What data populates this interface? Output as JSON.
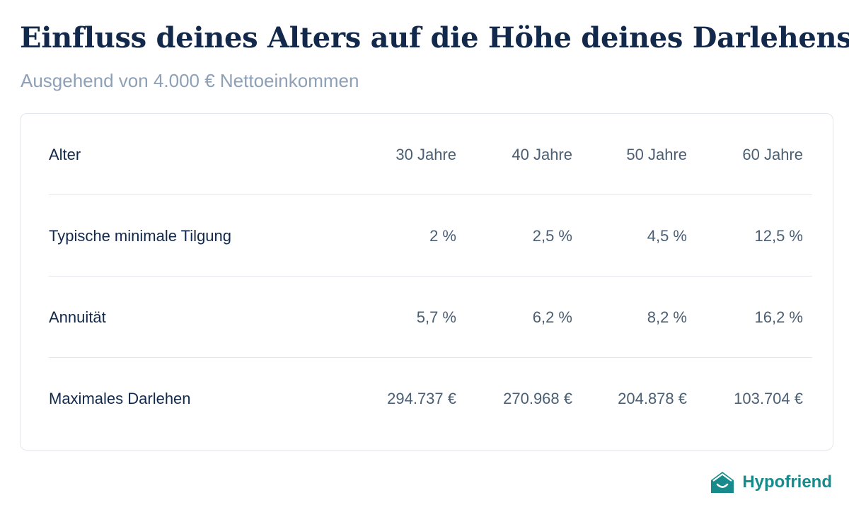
{
  "title": "Einfluss deines Alters auf die Höhe deines Darlehens",
  "subtitle": "Ausgehend von 4.000 € Nettoeinkommen",
  "table": {
    "header": {
      "label": "Alter",
      "values": [
        "30 Jahre",
        "40 Jahre",
        "50 Jahre",
        "60 Jahre"
      ]
    },
    "rows": [
      {
        "label": "Typische minimale Tilgung",
        "values": [
          "2 %",
          "2,5 %",
          "4,5 %",
          "12,5 %"
        ]
      },
      {
        "label": "Annuität",
        "values": [
          "5,7 %",
          "6,2 %",
          "8,2 %",
          "16,2 %"
        ]
      },
      {
        "label": "Maximales Darlehen",
        "values": [
          "294.737 €",
          "270.968 €",
          "204.878 €",
          "103.704 €"
        ]
      }
    ]
  },
  "brand": {
    "name": "Hypofriend",
    "icon": "house-smile-icon",
    "color": "#178b8b"
  },
  "colors": {
    "title": "#13294b",
    "subtitle": "#8ea0b6",
    "values": "#4b5f74"
  }
}
